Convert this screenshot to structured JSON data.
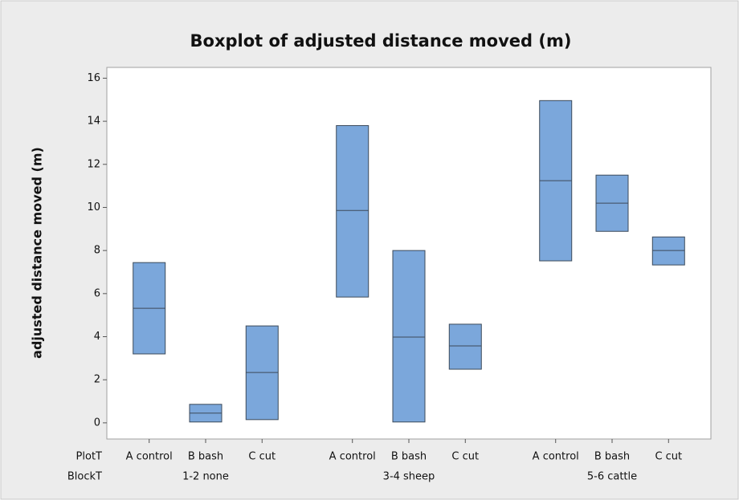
{
  "chart_data": {
    "type": "box",
    "title": "Boxplot of adjusted distance moved (m)",
    "ylabel": "adjusted distance moved (m)",
    "row_labels": [
      "PlotT",
      "BlockT"
    ],
    "groups": [
      {
        "name": "1-2 none",
        "boxes": [
          {
            "label": "A control",
            "q1": 3.2,
            "median": 5.32,
            "q3": 7.44
          },
          {
            "label": "B bash",
            "q1": 0.04,
            "median": 0.45,
            "q3": 0.86
          },
          {
            "label": "C cut",
            "q1": 0.15,
            "median": 2.34,
            "q3": 4.5
          }
        ]
      },
      {
        "name": "3-4 sheep",
        "boxes": [
          {
            "label": "A control",
            "q1": 5.84,
            "median": 9.86,
            "q3": 13.8
          },
          {
            "label": "B bash",
            "q1": 0.04,
            "median": 3.98,
            "q3": 8.0
          },
          {
            "label": "C cut",
            "q1": 2.49,
            "median": 3.57,
            "q3": 4.58
          }
        ]
      },
      {
        "name": "5-6 cattle",
        "boxes": [
          {
            "label": "A control",
            "q1": 7.52,
            "median": 11.24,
            "q3": 14.96
          },
          {
            "label": "B bash",
            "q1": 8.89,
            "median": 10.2,
            "q3": 11.5
          },
          {
            "label": "C cut",
            "q1": 7.33,
            "median": 8.0,
            "q3": 8.63
          }
        ]
      }
    ],
    "color": "#7ba7db",
    "ylim": [
      -0.75,
      16.5
    ],
    "yticks": [
      0,
      2,
      4,
      6,
      8,
      10,
      12,
      14,
      16
    ]
  }
}
